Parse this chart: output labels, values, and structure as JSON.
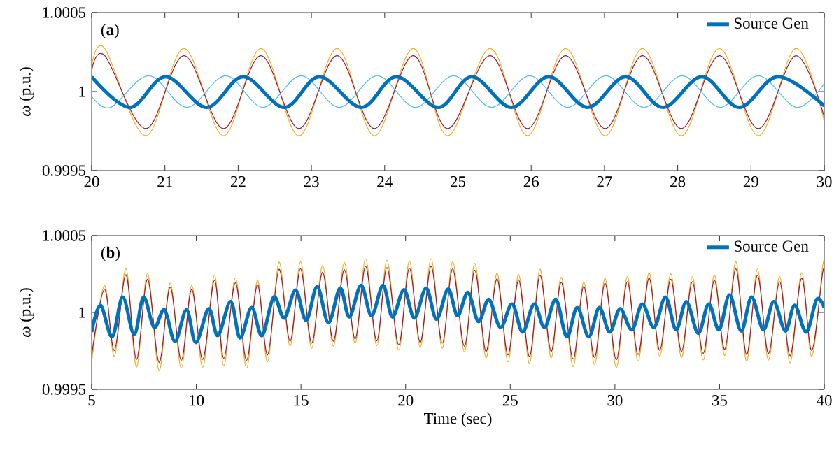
{
  "chart_data": [
    {
      "type": "line",
      "ylabel": "*ω* (p.u.)",
      "annotations": [
        "(**a**)"
      ],
      "xlim": [
        20,
        30
      ],
      "xticks": [
        20,
        21,
        22,
        23,
        24,
        25,
        26,
        27,
        28,
        29,
        30
      ],
      "ylim": [
        0.9995,
        1.0005
      ],
      "yticks": [
        0.9995,
        1,
        1.0005
      ],
      "legend": "top right",
      "series": [
        {
          "color": "#edb120",
          "x": [
            20,
            20.18,
            20.74,
            21.26,
            21.8,
            22.31,
            22.83,
            23.35,
            23.86,
            24.39,
            24.86,
            25.44,
            25.95,
            26.47,
            27.01,
            27.52,
            28.05,
            28.57,
            29.1,
            29.61,
            30
          ],
          "values": [
            1.000162,
            1.000273,
            0.999721,
            1.000273,
            0.999721,
            1.000273,
            0.999721,
            1.000273,
            0.999721,
            1.000273,
            0.999721,
            1.000273,
            0.999721,
            1.000273,
            0.999721,
            1.000273,
            0.999721,
            1.000273,
            0.999721,
            1.000273,
            0.999812
          ]
        },
        {
          "color": "#a2142f",
          "x": [
            20,
            20.18,
            20.74,
            21.26,
            21.8,
            22.31,
            22.83,
            23.35,
            23.86,
            24.39,
            24.86,
            25.44,
            25.95,
            26.47,
            27.01,
            27.52,
            28.05,
            28.57,
            29.1,
            29.61,
            30
          ],
          "values": [
            1.000135,
            1.000227,
            0.999766,
            1.000227,
            0.999766,
            1.000227,
            0.999766,
            1.000227,
            0.999766,
            1.000227,
            0.999766,
            1.000227,
            0.999766,
            1.000227,
            0.999766,
            1.000227,
            0.999766,
            1.000227,
            0.999766,
            1.000227,
            0.99984
          ]
        },
        {
          "color": "#4dbeee",
          "x": [
            20,
            20.26,
            20.78,
            21.3,
            21.83,
            22.34,
            22.86,
            23.38,
            23.9,
            24.42,
            24.94,
            25.46,
            25.98,
            26.5,
            27.02,
            27.54,
            28.06,
            28.58,
            29.1,
            29.62,
            30
          ],
          "values": [
            0.99997,
            0.9999,
            1.0001,
            0.9999,
            1.0001,
            0.9999,
            1.0001,
            0.9999,
            1.0001,
            0.9999,
            1.0001,
            0.9999,
            1.0001,
            0.9999,
            1.0001,
            0.9999,
            1.0001,
            0.9999,
            1.0001,
            0.9999,
            1.00005
          ]
        },
        {
          "name": "Source Gen",
          "color": "#0072bd",
          "x": [
            20,
            20.52,
            21.01,
            21.57,
            22.07,
            22.63,
            23.11,
            23.68,
            24.16,
            24.73,
            25.19,
            25.73,
            26.24,
            26.77,
            27.29,
            27.8,
            28.33,
            28.84,
            29.37,
            30
          ],
          "values": [
            1.000093,
            0.9999,
            1.000094,
            0.9999,
            1.000094,
            0.9999,
            1.000094,
            0.9999,
            1.000094,
            0.9999,
            1.000094,
            0.9999,
            1.000094,
            0.9999,
            1.000094,
            0.9999,
            1.000094,
            0.9999,
            1.000094,
            0.99991
          ]
        }
      ]
    },
    {
      "type": "line",
      "xlabel": "Time (sec)",
      "ylabel": "*ω* (p.u.)",
      "annotations": [
        "(**b**)"
      ],
      "xlim": [
        5,
        40
      ],
      "xticks": [
        5,
        10,
        15,
        20,
        25,
        30,
        35,
        40
      ],
      "ylim": [
        0.9995,
        1.0005
      ],
      "yticks": [
        0.9995,
        1,
        1.0005
      ],
      "legend": "top right",
      "series": [
        {
          "color": "#edb120",
          "x": [
            5,
            5.61,
            6.09,
            6.64,
            7.14,
            7.67,
            8.22,
            8.75,
            9.28,
            9.78,
            10.31,
            10.87,
            11.31,
            11.87,
            12.4,
            12.92,
            13.41,
            13.95,
            14.48,
            14.98,
            15.51,
            16.03,
            16.55,
            17.07,
            17.59,
            18.09,
            18.62,
            19.11,
            19.67,
            20.18,
            20.7,
            21.22,
            21.75,
            22.25,
            22.81,
            23.31,
            23.84,
            24.37,
            24.89,
            25.4,
            25.92,
            26.42,
            26.95,
            27.44,
            28.0,
            28.51,
            29.03,
            29.53,
            30.07,
            30.59,
            31.11,
            31.63,
            32.14,
            32.67,
            33.18,
            33.7,
            34.22,
            34.75,
            35.25,
            35.78,
            36.29,
            36.81,
            37.33,
            37.87,
            38.37,
            38.92,
            39.4,
            39.92,
            40
          ],
          "values": [
            0.999676,
            1.000176,
            0.999714,
            1.000285,
            0.999645,
            1.000252,
            0.999623,
            1.000191,
            0.999638,
            1.000176,
            0.999645,
            1.000244,
            0.999653,
            1.000224,
            0.999638,
            1.000209,
            0.99968,
            1.000327,
            0.999782,
            1.00033,
            0.999767,
            1.000305,
            0.999782,
            1.000324,
            0.9998,
            1.00035,
            0.999785,
            1.000339,
            0.999755,
            1.000335,
            0.999774,
            1.00035,
            0.999767,
            1.00033,
            0.999744,
            1.00032,
            0.999706,
            1.000255,
            0.999679,
            1.000247,
            0.999668,
            1.000282,
            0.999706,
            1.000229,
            0.999648,
            1.000198,
            0.999661,
            1.000221,
            0.999642,
            1.000233,
            0.999683,
            1.000259,
            0.999714,
            1.000252,
            0.999706,
            1.000233,
            0.999691,
            1.000244,
            0.999721,
            1.00033,
            0.999683,
            1.000282,
            0.999691,
            1.000233,
            0.999673,
            1.000259,
            0.999714,
            1.000297,
            1.00029
          ]
        },
        {
          "color": "#a2142f",
          "x": [
            5,
            5.61,
            6.09,
            6.64,
            7.14,
            7.67,
            8.22,
            8.75,
            9.28,
            9.78,
            10.31,
            10.87,
            11.31,
            11.87,
            12.4,
            12.92,
            13.41,
            13.95,
            14.48,
            14.98,
            15.51,
            16.03,
            16.55,
            17.07,
            17.59,
            18.09,
            18.62,
            19.11,
            19.67,
            20.18,
            20.7,
            21.22,
            21.75,
            22.25,
            22.81,
            23.31,
            23.84,
            24.37,
            24.89,
            25.4,
            25.92,
            26.42,
            26.95,
            27.44,
            28.0,
            28.51,
            29.03,
            29.53,
            30.07,
            30.59,
            31.11,
            31.63,
            32.14,
            32.67,
            33.18,
            33.7,
            34.22,
            34.75,
            35.25,
            35.78,
            36.29,
            36.81,
            37.33,
            37.87,
            38.37,
            38.92,
            39.4,
            39.92,
            40
          ],
          "values": [
            0.999721,
            1.000151,
            0.999754,
            1.000245,
            0.999695,
            1.000217,
            0.999676,
            1.000164,
            0.999689,
            1.000151,
            0.999695,
            1.00021,
            0.999702,
            1.000193,
            0.999689,
            1.00018,
            0.999725,
            1.000281,
            0.999813,
            1.000284,
            0.9998,
            1.000262,
            0.999813,
            1.000279,
            0.999828,
            1.000301,
            0.999815,
            1.000292,
            0.999789,
            1.000288,
            0.999806,
            1.000301,
            0.9998,
            1.000284,
            0.99978,
            1.000275,
            0.999747,
            1.000219,
            0.999724,
            1.000212,
            0.999714,
            1.000243,
            0.999747,
            1.000197,
            0.999697,
            1.00017,
            0.999708,
            1.00019,
            0.999692,
            1.0002,
            0.999727,
            1.000223,
            0.999754,
            1.000217,
            0.999747,
            1.0002,
            0.999734,
            1.00021,
            0.99976,
            1.000284,
            0.999727,
            1.000243,
            0.999734,
            1.0002,
            0.999719,
            1.000223,
            0.999754,
            1.000255,
            1.00025
          ]
        },
        {
          "name": "Source Gen",
          "color": "#0072bd",
          "x": [
            5,
            5.42,
            5.98,
            6.48,
            7.03,
            7.48,
            7.98,
            8.48,
            8.98,
            9.53,
            9.98,
            10.59,
            11.03,
            11.64,
            12.09,
            12.64,
            13.14,
            13.7,
            14.2,
            14.75,
            15.25,
            15.78,
            16.31,
            16.87,
            17.31,
            17.87,
            18.37,
            18.92,
            19.37,
            19.92,
            20.42,
            20.98,
            21.48,
            22.03,
            22.48,
            22.98,
            23.48,
            23.98,
            24.53,
            25.09,
            25.59,
            26.14,
            26.64,
            27.18,
            27.7,
            28.2,
            28.75,
            29.25,
            29.75,
            30.25,
            30.81,
            31.31,
            31.87,
            32.42,
            32.92,
            33.42,
            33.98,
            34.48,
            34.98,
            35.48,
            36.03,
            36.53,
            37.09,
            37.59,
            38.14,
            38.59,
            39.14,
            39.64,
            40
          ],
          "values": [
            0.999873,
            1.000047,
            0.999842,
            1.0001,
            0.999858,
            1.0001,
            0.999903,
            1.000017,
            0.999812,
            1.000017,
            0.999805,
            1.000024,
            0.99985,
            1.00007,
            0.999835,
            1.000032,
            0.99985,
            1.0001,
            0.999964,
            1.000145,
            0.999948,
            1.000168,
            0.999933,
            1.000158,
            0.999971,
            1.000176,
            0.999979,
            1.000176,
            0.999971,
            1.000148,
            0.999964,
            1.000158,
            0.999956,
            1.000153,
            0.999979,
            1.00013,
            0.999941,
            1.000085,
            0.999903,
            1.000055,
            0.999873,
            1.000055,
            0.999903,
            1.000085,
            0.999842,
            1.000032,
            0.999842,
            1.000032,
            0.999873,
            1.000024,
            0.999888,
            1.000055,
            0.999903,
            1.0001,
            0.999888,
            1.00007,
            0.999865,
            1.000055,
            0.999888,
            1.000115,
            0.99988,
            1.0001,
            0.999888,
            1.00007,
            0.99988,
            1.000047,
            0.999873,
            1.000085,
            1.000032
          ]
        }
      ]
    }
  ]
}
